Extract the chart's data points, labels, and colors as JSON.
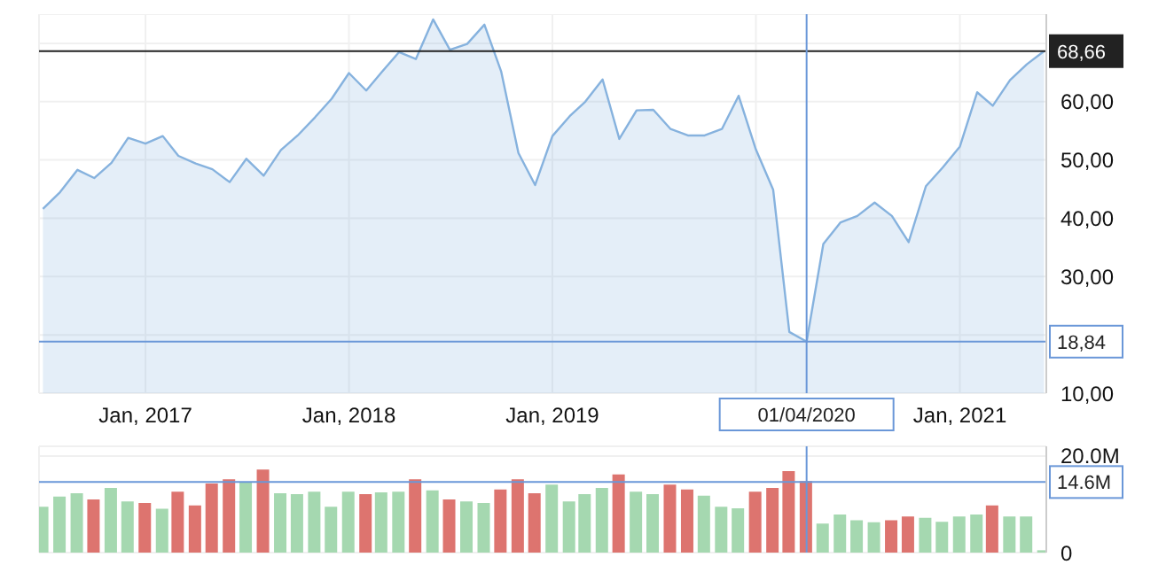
{
  "chart_data": [
    {
      "type": "area",
      "x": [
        "2016-07",
        "2016-08",
        "2016-09",
        "2016-10",
        "2016-11",
        "2016-12",
        "2017-01",
        "2017-02",
        "2017-03",
        "2017-04",
        "2017-05",
        "2017-06",
        "2017-07",
        "2017-08",
        "2017-09",
        "2017-10",
        "2017-11",
        "2017-12",
        "2018-01",
        "2018-02",
        "2018-03",
        "2018-04",
        "2018-05",
        "2018-06",
        "2018-07",
        "2018-08",
        "2018-09",
        "2018-10",
        "2018-11",
        "2018-12",
        "2019-01",
        "2019-02",
        "2019-03",
        "2019-04",
        "2019-05",
        "2019-06",
        "2019-07",
        "2019-08",
        "2019-09",
        "2019-10",
        "2019-11",
        "2019-12",
        "2020-01",
        "2020-02",
        "2020-03",
        "2020-04",
        "2020-05",
        "2020-06",
        "2020-07",
        "2020-08",
        "2020-09",
        "2020-10",
        "2020-11",
        "2020-12",
        "2021-01",
        "2021-02",
        "2021-03",
        "2021-04",
        "2021-05",
        "2021-06"
      ],
      "series": [
        {
          "color": "#86b2de",
          "values": [
            41.6,
            44.5,
            48.3,
            46.9,
            49.5,
            53.8,
            52.8,
            54.1,
            50.7,
            49.4,
            48.4,
            46.2,
            50.2,
            47.3,
            51.7,
            54.2,
            57.3,
            60.5,
            64.9,
            61.9,
            65.1,
            68.5,
            67.3,
            74.1,
            68.9,
            69.9,
            73.2,
            65.2,
            51.2,
            45.7,
            54.1,
            57.5,
            60.0,
            63.8,
            53.6,
            58.5,
            58.6,
            55.3,
            54.2,
            54.2,
            55.3,
            61.0,
            51.8,
            44.9,
            20.5,
            18.84,
            35.6,
            39.3,
            40.4,
            42.7,
            40.4,
            35.9,
            45.5,
            48.7,
            52.3,
            61.6,
            59.3,
            63.7,
            66.4,
            68.66
          ]
        }
      ],
      "xlim": [
        "2016-06-24",
        "2021-06-05"
      ],
      "xticks": [
        {
          "value": "2017-01",
          "label": "Jan, 2017"
        },
        {
          "value": "2018-01",
          "label": "Jan, 2018"
        },
        {
          "value": "2019-01",
          "label": "Jan, 2019"
        },
        {
          "value": "2020-01",
          "label": null
        },
        {
          "value": "2021-01",
          "label": "Jan, 2021"
        }
      ],
      "ylim": [
        10,
        75
      ],
      "yticks": [
        {
          "value": 10,
          "label": "10,00"
        },
        {
          "value": 20,
          "label": null
        },
        {
          "value": 30,
          "label": "30,00"
        },
        {
          "value": 40,
          "label": "40,00"
        },
        {
          "value": 50,
          "label": "50,00"
        },
        {
          "value": 60,
          "label": "60,00"
        },
        {
          "value": 70,
          "label": null
        }
      ],
      "grid": true,
      "ref_lines": [
        {
          "axis": "y",
          "value": 68.66,
          "label": "68,66",
          "color": "#222222"
        },
        {
          "axis": "y",
          "value": 18.84,
          "label": "18,84",
          "color": "#6a97d8"
        },
        {
          "axis": "x",
          "value": "2020-04",
          "label": "01/04/2020",
          "color": "#6a97d8"
        }
      ]
    },
    {
      "type": "bar",
      "x": [
        "2016-07",
        "2016-08",
        "2016-09",
        "2016-10",
        "2016-11",
        "2016-12",
        "2017-01",
        "2017-02",
        "2017-03",
        "2017-04",
        "2017-05",
        "2017-06",
        "2017-07",
        "2017-08",
        "2017-09",
        "2017-10",
        "2017-11",
        "2017-12",
        "2018-01",
        "2018-02",
        "2018-03",
        "2018-04",
        "2018-05",
        "2018-06",
        "2018-07",
        "2018-08",
        "2018-09",
        "2018-10",
        "2018-11",
        "2018-12",
        "2019-01",
        "2019-02",
        "2019-03",
        "2019-04",
        "2019-05",
        "2019-06",
        "2019-07",
        "2019-08",
        "2019-09",
        "2019-10",
        "2019-11",
        "2019-12",
        "2020-01",
        "2020-02",
        "2020-03",
        "2020-04",
        "2020-05",
        "2020-06",
        "2020-07",
        "2020-08",
        "2020-09",
        "2020-10",
        "2020-11",
        "2020-12",
        "2021-01",
        "2021-02",
        "2021-03",
        "2021-04",
        "2021-05",
        "2021-06"
      ],
      "values": [
        9.3,
        11.4,
        12.1,
        10.8,
        13.2,
        10.4,
        10.1,
        8.9,
        12.4,
        9.6,
        14.1,
        15.0,
        14.5,
        17.0,
        12.1,
        11.9,
        12.4,
        9.3,
        12.4,
        11.9,
        12.3,
        12.4,
        15.0,
        12.7,
        10.8,
        10.4,
        10.1,
        12.9,
        15.0,
        12.1,
        13.9,
        10.4,
        11.9,
        13.2,
        16.0,
        12.4,
        11.9,
        13.9,
        12.9,
        11.6,
        9.3,
        9.0,
        12.4,
        13.2,
        16.7,
        14.6,
        5.8,
        7.7,
        6.5,
        6.1,
        6.5,
        7.3,
        7.0,
        6.2,
        7.3,
        7.7,
        9.6,
        7.3,
        7.3,
        0.3
      ],
      "colors": [
        "#a5d8b0",
        "#a5d8b0",
        "#a5d8b0",
        "#dd746f",
        "#a5d8b0",
        "#a5d8b0",
        "#dd746f",
        "#a5d8b0",
        "#dd746f",
        "#dd746f",
        "#dd746f",
        "#dd746f",
        "#a5d8b0",
        "#dd746f",
        "#a5d8b0",
        "#a5d8b0",
        "#a5d8b0",
        "#a5d8b0",
        "#a5d8b0",
        "#dd746f",
        "#a5d8b0",
        "#a5d8b0",
        "#dd746f",
        "#a5d8b0",
        "#dd746f",
        "#a5d8b0",
        "#a5d8b0",
        "#dd746f",
        "#dd746f",
        "#dd746f",
        "#a5d8b0",
        "#a5d8b0",
        "#a5d8b0",
        "#a5d8b0",
        "#dd746f",
        "#a5d8b0",
        "#a5d8b0",
        "#dd746f",
        "#dd746f",
        "#a5d8b0",
        "#a5d8b0",
        "#a5d8b0",
        "#dd746f",
        "#dd746f",
        "#dd746f",
        "#dd746f",
        "#a5d8b0",
        "#a5d8b0",
        "#a5d8b0",
        "#a5d8b0",
        "#dd746f",
        "#dd746f",
        "#a5d8b0",
        "#a5d8b0",
        "#a5d8b0",
        "#a5d8b0",
        "#dd746f",
        "#a5d8b0",
        "#a5d8b0",
        "#a5d8b0"
      ],
      "xlim": [
        "2016-06-24",
        "2021-06-05"
      ],
      "ylim": [
        0,
        22
      ],
      "yticks": [
        {
          "value": 0,
          "label": "0"
        },
        {
          "value": 20,
          "label": "20.0M"
        }
      ],
      "tick_labels": "y",
      "grid": true,
      "ref_lines": [
        {
          "axis": "y",
          "value": 14.6,
          "label": "14.6M",
          "color": "#6a97d8"
        },
        {
          "axis": "x",
          "value": "2020-04",
          "label": null,
          "color": "#6a97d8"
        }
      ]
    }
  ]
}
